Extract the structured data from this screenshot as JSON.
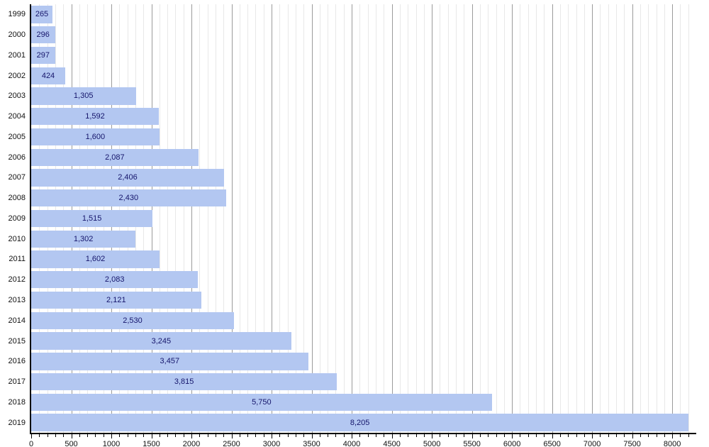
{
  "chart_data": {
    "type": "bar",
    "orientation": "horizontal",
    "title": "",
    "xlabel": "",
    "ylabel": "",
    "categories": [
      "1999",
      "2000",
      "2001",
      "2002",
      "2003",
      "2004",
      "2005",
      "2006",
      "2007",
      "2008",
      "2009",
      "2010",
      "2011",
      "2012",
      "2013",
      "2014",
      "2015",
      "2016",
      "2017",
      "2018",
      "2019"
    ],
    "values": [
      265,
      296,
      297,
      424,
      1305,
      1592,
      1600,
      2087,
      2406,
      2430,
      1515,
      1302,
      1602,
      2083,
      2121,
      2530,
      3245,
      3457,
      3815,
      5750,
      8205
    ],
    "value_labels": [
      "265",
      "296",
      "297",
      "424",
      "1,305",
      "1,592",
      "1,600",
      "2,087",
      "2,406",
      "2,430",
      "1,515",
      "1,302",
      "1,602",
      "2,083",
      "2,121",
      "2,530",
      "3,245",
      "3,457",
      "3,815",
      "5,750",
      "8,205"
    ],
    "xlim": [
      0,
      8300
    ],
    "x_major_ticks": [
      0,
      500,
      1000,
      1500,
      2000,
      2500,
      3000,
      3500,
      4000,
      4500,
      5000,
      5500,
      6000,
      6500,
      7000,
      7500,
      8000
    ],
    "x_major_tick_labels": [
      "0",
      "500",
      "1000",
      "1500",
      "2000",
      "2500",
      "3000",
      "3500",
      "4000",
      "4500",
      "5000",
      "5500",
      "6000",
      "6500",
      "7000",
      "7500",
      "8000"
    ],
    "x_minor_step": 100,
    "x_minor_max": 8200,
    "grid": true,
    "legend": "none"
  },
  "style": {
    "background": "#ffffff",
    "bar_fill": "#b3c7f1",
    "bar_label_color": "#15156b",
    "axis_color": "#000000",
    "major_grid_color": "#9b9b9b",
    "minor_grid_color": "#e8e8e8",
    "tick_label_color": "#111111",
    "year_label_color": "#111111"
  }
}
